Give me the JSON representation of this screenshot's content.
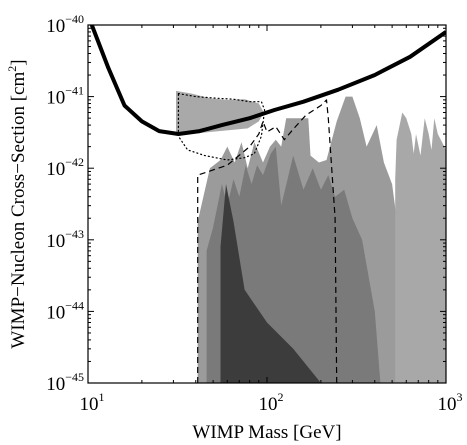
{
  "chart_data": {
    "type": "area",
    "x_scale": "log",
    "y_scale": "log",
    "xlim": [
      10,
      1000
    ],
    "ylim": [
      1e-45,
      1e-40
    ],
    "grid": false,
    "xlabel": "WIMP Mass [GeV]",
    "ylabel_main": "WIMP−Nucleon Cross−Section [cm",
    "ylabel_sup": "2",
    "ylabel_close": "]",
    "x_ticks": [
      {
        "value": 10,
        "base": "10",
        "exp": "1"
      },
      {
        "value": 100,
        "base": "10",
        "exp": "2"
      },
      {
        "value": 1000,
        "base": "10",
        "exp": "3"
      }
    ],
    "y_ticks": [
      {
        "value": 1e-40,
        "base": "10",
        "exp": "−40"
      },
      {
        "value": 1e-41,
        "base": "10",
        "exp": "−41"
      },
      {
        "value": 1e-42,
        "base": "10",
        "exp": "−42"
      },
      {
        "value": 1e-43,
        "base": "10",
        "exp": "−43"
      },
      {
        "value": 1e-44,
        "base": "10",
        "exp": "−44"
      },
      {
        "value": 1e-45,
        "base": "10",
        "exp": "−45"
      }
    ],
    "regions": [
      {
        "color": "#9b9b9b",
        "points": [
          [
            41,
            1e-45
          ],
          [
            41,
            1.8e-43
          ],
          [
            48,
            1e-42
          ],
          [
            55,
            1.3e-42
          ],
          [
            60,
            2e-42
          ],
          [
            66,
            1.2e-42
          ],
          [
            72,
            2.3e-42
          ],
          [
            78,
            1e-42
          ],
          [
            85,
            2.3e-42
          ],
          [
            95,
            1.2e-42
          ],
          [
            104,
            2e-42
          ],
          [
            112,
            2.5e-42
          ],
          [
            120,
            2e-42
          ],
          [
            128,
            5e-42
          ],
          [
            170,
            5e-42
          ],
          [
            175,
            1.5e-42
          ],
          [
            195,
            1.2e-42
          ],
          [
            215,
            1.3e-42
          ],
          [
            245,
            4.5e-42
          ],
          [
            275,
            1e-41
          ],
          [
            300,
            1e-41
          ],
          [
            330,
            5e-42
          ],
          [
            360,
            2e-42
          ],
          [
            410,
            4e-42
          ],
          [
            450,
            1.2e-42
          ],
          [
            500,
            6e-43
          ],
          [
            700,
            1e-45
          ]
        ]
      },
      {
        "color": "#a8a8a8",
        "points": [
          [
            520,
            1e-45
          ],
          [
            520,
            7e-43
          ],
          [
            530,
            2.5e-42
          ],
          [
            570,
            6e-42
          ],
          [
            600,
            5e-42
          ],
          [
            640,
            3e-42
          ],
          [
            660,
            1.6e-42
          ],
          [
            680,
            3e-42
          ],
          [
            720,
            1.5e-42
          ],
          [
            760,
            5e-42
          ],
          [
            800,
            3e-42
          ],
          [
            830,
            1.8e-42
          ],
          [
            860,
            5e-42
          ],
          [
            900,
            3e-42
          ],
          [
            1000,
            1.8e-42
          ],
          [
            1000,
            1e-45
          ]
        ]
      },
      {
        "color": "#7a7a7a",
        "points": [
          [
            46,
            1e-45
          ],
          [
            46,
            7e-44
          ],
          [
            50,
            1.5e-43
          ],
          [
            56,
            6e-43
          ],
          [
            60,
            3e-43
          ],
          [
            65,
            7e-43
          ],
          [
            70,
            4e-43
          ],
          [
            76,
            1.1e-42
          ],
          [
            82,
            6e-43
          ],
          [
            88,
            1.1e-42
          ],
          [
            95,
            8e-43
          ],
          [
            105,
            1.6e-42
          ],
          [
            112,
            2e-42
          ],
          [
            120,
            3e-43
          ],
          [
            140,
            1.5e-42
          ],
          [
            160,
            5e-43
          ],
          [
            180,
            1e-42
          ],
          [
            200,
            5e-43
          ],
          [
            220,
            8e-43
          ],
          [
            240,
            4e-43
          ],
          [
            270,
            5e-43
          ],
          [
            300,
            2e-43
          ],
          [
            340,
            1e-43
          ],
          [
            400,
            1e-44
          ],
          [
            430,
            1e-45
          ]
        ]
      },
      {
        "color": "#3c3c3c",
        "points": [
          [
            55,
            1e-45
          ],
          [
            55,
            8e-44
          ],
          [
            59,
            6e-43
          ],
          [
            65,
            1.8e-43
          ],
          [
            75,
            2e-44
          ],
          [
            100,
            7e-45
          ],
          [
            140,
            3e-45
          ],
          [
            200,
            1e-45
          ]
        ]
      },
      {
        "color": "#a9a9a9",
        "points": [
          [
            31,
            1.2e-41
          ],
          [
            38,
            1.1e-41
          ],
          [
            48,
            9.5e-42
          ],
          [
            60,
            9e-42
          ],
          [
            75,
            9.2e-42
          ],
          [
            90,
            8e-42
          ],
          [
            96,
            6e-42
          ],
          [
            90,
            4.5e-42
          ],
          [
            78,
            3.6e-42
          ],
          [
            62,
            3.4e-42
          ],
          [
            48,
            3.2e-42
          ],
          [
            38,
            3e-42
          ],
          [
            31,
            3e-42
          ]
        ]
      }
    ],
    "series": [
      {
        "style": "solid",
        "color": "#000000",
        "width": 4,
        "points": [
          [
            10.5,
            1e-40
          ],
          [
            13,
            2.5e-41
          ],
          [
            16,
            7.5e-42
          ],
          [
            20,
            4.5e-42
          ],
          [
            25,
            3.3e-42
          ],
          [
            32,
            3e-42
          ],
          [
            42,
            3.3e-42
          ],
          [
            56,
            4e-42
          ],
          [
            80,
            5e-42
          ],
          [
            110,
            6.5e-42
          ],
          [
            160,
            8.5e-42
          ],
          [
            250,
            1.25e-41
          ],
          [
            400,
            2e-41
          ],
          [
            630,
            3.6e-41
          ],
          [
            1000,
            8e-41
          ]
        ]
      },
      {
        "style": "dotted",
        "color": "#000000",
        "width": 1.2,
        "points": [
          [
            32,
            1.1e-41
          ],
          [
            40,
            1e-41
          ],
          [
            52,
            9.5e-42
          ],
          [
            65,
            9.2e-42
          ],
          [
            80,
            8.5e-42
          ],
          [
            93,
            8.5e-42
          ],
          [
            97,
            6.5e-42
          ],
          [
            93,
            2.8e-42
          ],
          [
            85,
            1.6e-42
          ],
          [
            75,
            1.4e-42
          ],
          [
            60,
            1.3e-42
          ],
          [
            45,
            1.5e-42
          ],
          [
            36,
            1.8e-42
          ],
          [
            32,
            2.8e-42
          ],
          [
            32,
            1.1e-41
          ]
        ]
      },
      {
        "style": "dashed",
        "color": "#000000",
        "width": 1.2,
        "points": [
          [
            41,
            1e-45
          ],
          [
            41,
            8e-43
          ],
          [
            60,
            1.1e-42
          ],
          [
            80,
            2e-42
          ],
          [
            90,
            3e-42
          ],
          [
            95,
            4.5e-42
          ],
          [
            100,
            3.2e-42
          ],
          [
            112,
            3.8e-42
          ],
          [
            125,
            2.5e-42
          ],
          [
            140,
            3.5e-42
          ],
          [
            165,
            5.5e-42
          ],
          [
            200,
            7.5e-42
          ],
          [
            215,
            9e-42
          ],
          [
            220,
            5e-42
          ],
          [
            240,
            2e-43
          ],
          [
            245,
            1e-45
          ]
        ]
      }
    ]
  }
}
